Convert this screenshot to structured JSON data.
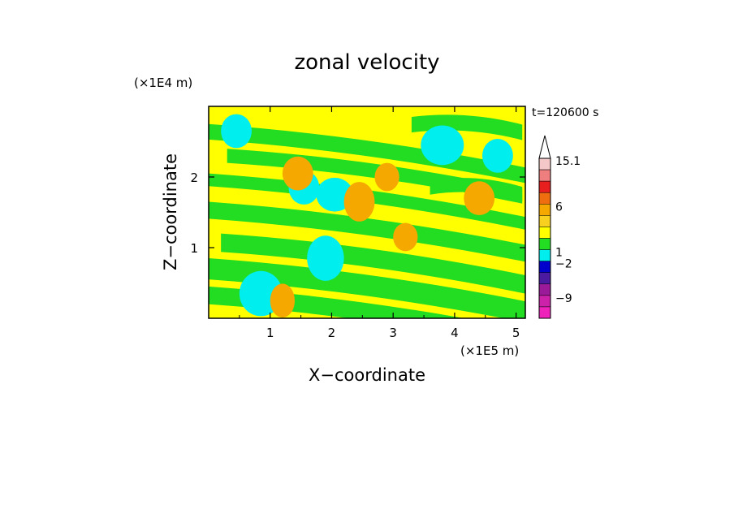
{
  "chart_data": {
    "type": "heatmap",
    "title": "zonal velocity",
    "xlabel": "X−coordinate",
    "ylabel": "Z−coordinate",
    "x_unit": "(×1E5 m)",
    "y_unit": "(×1E4 m)",
    "time_label": "t=120600 s",
    "xlim": [
      0,
      5.15
    ],
    "ylim": [
      0,
      3.0
    ],
    "x_ticks": [
      "1",
      "2",
      "3",
      "4",
      "5"
    ],
    "y_ticks": [
      "1",
      "2"
    ],
    "colorbar": {
      "labels": [
        "15.1",
        "6",
        "1",
        "−2",
        "−9"
      ],
      "bins_top_to_bottom": [
        {
          "color": "#f4c8c8"
        },
        {
          "color": "#ef7f7f"
        },
        {
          "color": "#e81f1f"
        },
        {
          "color": "#ef6f10"
        },
        {
          "color": "#f5a800"
        },
        {
          "color": "#f7d020"
        },
        {
          "color": "#ffff00"
        },
        {
          "color": "#22dd22"
        },
        {
          "color": "#00eeee"
        },
        {
          "color": "#0000cc"
        },
        {
          "color": "#4a1aa0"
        },
        {
          "color": "#9a1a9a"
        },
        {
          "color": "#cc22aa"
        },
        {
          "color": "#ee22bb"
        }
      ]
    },
    "field": {
      "background_color": "#ffff00",
      "band_color": "#22dd22",
      "core_color": "#00eeee",
      "warm_color": "#f5a800",
      "band_slope_data_units": -0.6,
      "description_levels": [
        "yellow",
        "green",
        "cyan",
        "orange"
      ]
    }
  }
}
